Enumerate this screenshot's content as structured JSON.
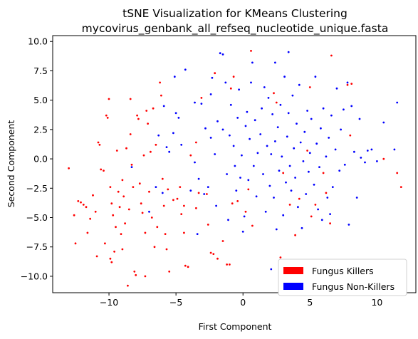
{
  "chart_data": {
    "type": "scatter",
    "title": "tSNE Visualization for KMeans Clustering",
    "subtitle": "mycovirus_genbank_all_refseq_nucleotide_unique.fasta",
    "xlabel": "First Component",
    "ylabel": "Second Component",
    "xlim": [
      -14.2,
      12.9
    ],
    "ylim": [
      -11.4,
      10.5
    ],
    "xticks": [
      -10,
      -5,
      0,
      5,
      10
    ],
    "yticks": [
      -10.0,
      -7.5,
      -5.0,
      -2.5,
      0.0,
      2.5,
      5.0,
      7.5,
      10.0
    ],
    "xtick_labels": [
      "−10",
      "−5",
      "0",
      "5",
      "10"
    ],
    "ytick_labels": [
      "−10.0",
      "−7.5",
      "−5.0",
      "−2.5",
      "0.0",
      "2.5",
      "5.0",
      "7.5",
      "10.0"
    ],
    "grid": false,
    "legend_position": "lower-right",
    "series": [
      {
        "name": "Fungus Killers",
        "color": "#ff0000",
        "points": [
          [
            -13.0,
            -0.8
          ],
          [
            -12.6,
            -4.8
          ],
          [
            -12.5,
            -7.2
          ],
          [
            -12.3,
            -3.6
          ],
          [
            -12.1,
            -3.7
          ],
          [
            -11.9,
            -3.9
          ],
          [
            -11.7,
            -4.1
          ],
          [
            -11.6,
            -6.3
          ],
          [
            -11.4,
            -5.1
          ],
          [
            -11.2,
            -3.1
          ],
          [
            -11.0,
            -4.5
          ],
          [
            -10.9,
            -8.3
          ],
          [
            -10.8,
            1.4
          ],
          [
            -10.7,
            1.2
          ],
          [
            -10.6,
            -0.9
          ],
          [
            -10.4,
            -1.0
          ],
          [
            -10.3,
            -7.2
          ],
          [
            -10.2,
            3.7
          ],
          [
            -10.1,
            3.5
          ],
          [
            -10.0,
            5.1
          ],
          [
            -9.9,
            -8.5
          ],
          [
            -9.8,
            -8.8
          ],
          [
            -9.9,
            -2.4
          ],
          [
            -9.8,
            -3.8
          ],
          [
            -9.7,
            -4.8
          ],
          [
            -9.6,
            -7.9
          ],
          [
            -9.5,
            -5.8
          ],
          [
            -9.4,
            0.7
          ],
          [
            -9.3,
            -2.8
          ],
          [
            -9.2,
            -4.1
          ],
          [
            -9.1,
            -6.4
          ],
          [
            -9.0,
            -7.7
          ],
          [
            -9.0,
            -1.8
          ],
          [
            -8.9,
            -3.2
          ],
          [
            -8.8,
            -5.5
          ],
          [
            -8.7,
            0.9
          ],
          [
            -8.6,
            -10.8
          ],
          [
            -8.5,
            -4.3
          ],
          [
            -8.4,
            5.1
          ],
          [
            -8.4,
            2.1
          ],
          [
            -8.3,
            -0.5
          ],
          [
            -8.2,
            -2.4
          ],
          [
            -8.1,
            -9.6
          ],
          [
            -8.0,
            -9.9
          ],
          [
            -7.9,
            3.7
          ],
          [
            -7.8,
            3.4
          ],
          [
            -7.7,
            -2.1
          ],
          [
            -7.6,
            -3.8
          ],
          [
            -7.5,
            -4.6
          ],
          [
            -7.4,
            0.3
          ],
          [
            -7.3,
            -6.3
          ],
          [
            -7.3,
            -10.0
          ],
          [
            -7.2,
            4.1
          ],
          [
            -7.1,
            3.0
          ],
          [
            -7.0,
            -2.8
          ],
          [
            -6.9,
            0.6
          ],
          [
            -6.8,
            -5.0
          ],
          [
            -6.7,
            4.3
          ],
          [
            -6.6,
            -7.5
          ],
          [
            -6.5,
            1.2
          ],
          [
            -6.4,
            -5.8
          ],
          [
            -6.2,
            6.5
          ],
          [
            -6.1,
            5.4
          ],
          [
            -6.0,
            -1.7
          ],
          [
            -5.9,
            -4.0
          ],
          [
            -5.8,
            -6.4
          ],
          [
            -5.7,
            -7.7
          ],
          [
            -5.6,
            -2.6
          ],
          [
            -5.5,
            -9.6
          ],
          [
            -5.2,
            -3.5
          ],
          [
            -4.9,
            -3.4
          ],
          [
            -4.7,
            -2.4
          ],
          [
            -4.6,
            -4.7
          ],
          [
            -4.4,
            -4.0
          ],
          [
            -4.4,
            -6.3
          ],
          [
            -4.3,
            -9.1
          ],
          [
            -4.1,
            -9.2
          ],
          [
            -3.9,
            0.3
          ],
          [
            -3.5,
            1.4
          ],
          [
            -3.5,
            -4.2
          ],
          [
            -3.3,
            -2.9
          ],
          [
            -3.1,
            5.2
          ],
          [
            -2.7,
            -3.0
          ],
          [
            -2.6,
            -5.6
          ],
          [
            -2.4,
            -8.0
          ],
          [
            -2.2,
            -8.1
          ],
          [
            -2.1,
            7.3
          ],
          [
            -1.9,
            -8.5
          ],
          [
            -1.5,
            -7.0
          ],
          [
            -1.2,
            -9.0
          ],
          [
            -1.0,
            -9.0
          ],
          [
            -0.9,
            6.0
          ],
          [
            -0.8,
            -3.8
          ],
          [
            -0.7,
            7.0
          ],
          [
            -0.4,
            -3.6
          ],
          [
            0.2,
            -4.5
          ],
          [
            0.4,
            -2.6
          ],
          [
            0.6,
            9.2
          ],
          [
            0.7,
            -5.7
          ],
          [
            2.3,
            5.6
          ],
          [
            2.5,
            4.8
          ],
          [
            2.8,
            -8.4
          ],
          [
            3.0,
            -1.2
          ],
          [
            3.5,
            -3.9
          ],
          [
            3.9,
            -6.5
          ],
          [
            4.2,
            -3.4
          ],
          [
            4.8,
            0.7
          ],
          [
            5.0,
            6.1
          ],
          [
            5.1,
            -4.9
          ],
          [
            5.4,
            -3.9
          ],
          [
            6.0,
            -1.2
          ],
          [
            6.2,
            -2.9
          ],
          [
            6.5,
            -5.5
          ],
          [
            6.6,
            8.8
          ],
          [
            7.8,
            6.3
          ],
          [
            8.0,
            2.0
          ],
          [
            8.1,
            6.4
          ],
          [
            10.5,
            0.0
          ],
          [
            11.5,
            -1.2
          ],
          [
            11.8,
            -2.4
          ]
        ]
      },
      {
        "name": "Fungus Non-Killers",
        "color": "#0000ff",
        "points": [
          [
            -8.3,
            -0.7
          ],
          [
            -7.0,
            -4.5
          ],
          [
            -6.5,
            -2.4
          ],
          [
            -6.3,
            2.0
          ],
          [
            -6.0,
            -2.9
          ],
          [
            -5.9,
            4.5
          ],
          [
            -5.7,
            1.0
          ],
          [
            -5.5,
            0.6
          ],
          [
            -5.2,
            2.2
          ],
          [
            -5.1,
            7.0
          ],
          [
            -5.0,
            3.9
          ],
          [
            -4.8,
            3.5
          ],
          [
            -4.6,
            1.2
          ],
          [
            -4.3,
            7.6
          ],
          [
            -3.9,
            -2.7
          ],
          [
            -3.6,
            -0.3
          ],
          [
            -3.6,
            4.8
          ],
          [
            -3.4,
            -6.4
          ],
          [
            -3.3,
            -1.7
          ],
          [
            -3.1,
            4.7
          ],
          [
            -2.9,
            -3.0
          ],
          [
            -2.8,
            2.6
          ],
          [
            -2.6,
            -2.4
          ],
          [
            -2.4,
            1.8
          ],
          [
            -2.4,
            5.5
          ],
          [
            -2.3,
            6.9
          ],
          [
            -2.1,
            0.4
          ],
          [
            -2.0,
            -4.0
          ],
          [
            -1.9,
            3.2
          ],
          [
            -1.7,
            9.0
          ],
          [
            -1.5,
            8.9
          ],
          [
            -1.5,
            2.5
          ],
          [
            -1.3,
            6.5
          ],
          [
            -1.2,
            -1.3
          ],
          [
            -1.1,
            -5.2
          ],
          [
            -1.0,
            2.0
          ],
          [
            -0.9,
            4.6
          ],
          [
            -0.7,
            1.1
          ],
          [
            -0.6,
            -0.6
          ],
          [
            -0.5,
            -2.7
          ],
          [
            -0.4,
            3.5
          ],
          [
            -0.3,
            5.9
          ],
          [
            -0.2,
            -1.6
          ],
          [
            -0.1,
            0.3
          ],
          [
            0.0,
            -6.2
          ],
          [
            0.1,
            -4.9
          ],
          [
            0.2,
            2.8
          ],
          [
            0.3,
            4.0
          ],
          [
            0.4,
            -1.8
          ],
          [
            0.5,
            1.7
          ],
          [
            0.6,
            6.5
          ],
          [
            0.7,
            8.2
          ],
          [
            0.8,
            -0.6
          ],
          [
            0.9,
            3.3
          ],
          [
            1.0,
            -3.2
          ],
          [
            1.1,
            0.5
          ],
          [
            1.3,
            2.1
          ],
          [
            1.4,
            4.3
          ],
          [
            1.5,
            -1.3
          ],
          [
            1.6,
            6.1
          ],
          [
            1.7,
            -4.5
          ],
          [
            1.8,
            1.1
          ],
          [
            1.9,
            5.2
          ],
          [
            2.0,
            -2.3
          ],
          [
            2.1,
            -9.4
          ],
          [
            2.1,
            0.4
          ],
          [
            2.2,
            3.8
          ],
          [
            2.3,
            -3.3
          ],
          [
            2.4,
            8.2
          ],
          [
            2.4,
            1.5
          ],
          [
            2.5,
            -6.0
          ],
          [
            2.6,
            2.7
          ],
          [
            2.7,
            -1.0
          ],
          [
            2.8,
            4.6
          ],
          [
            2.9,
            0.2
          ],
          [
            3.0,
            -4.8
          ],
          [
            3.1,
            7.0
          ],
          [
            3.2,
            -2.0
          ],
          [
            3.3,
            1.9
          ],
          [
            3.4,
            9.1
          ],
          [
            3.4,
            3.9
          ],
          [
            3.5,
            -0.6
          ],
          [
            3.6,
            -2.7
          ],
          [
            3.7,
            5.4
          ],
          [
            3.8,
            0.9
          ],
          [
            3.9,
            -1.6
          ],
          [
            4.0,
            3.0
          ],
          [
            4.1,
            -4.1
          ],
          [
            4.2,
            6.3
          ],
          [
            4.3,
            1.4
          ],
          [
            4.4,
            -5.9
          ],
          [
            4.5,
            -0.2
          ],
          [
            4.6,
            2.3
          ],
          [
            4.7,
            -3.0
          ],
          [
            4.8,
            4.1
          ],
          [
            4.9,
            -1.1
          ],
          [
            5.0,
            0.5
          ],
          [
            5.1,
            3.4
          ],
          [
            5.3,
            -2.2
          ],
          [
            5.4,
            7.0
          ],
          [
            5.5,
            1.3
          ],
          [
            5.6,
            -4.3
          ],
          [
            5.7,
            -0.7
          ],
          [
            5.8,
            2.6
          ],
          [
            5.9,
            -5.2
          ],
          [
            6.0,
            4.3
          ],
          [
            6.2,
            0.2
          ],
          [
            6.3,
            -3.3
          ],
          [
            6.4,
            1.8
          ],
          [
            6.5,
            -4.7
          ],
          [
            6.6,
            3.7
          ],
          [
            6.7,
            -2.4
          ],
          [
            6.9,
            0.8
          ],
          [
            7.0,
            6.0
          ],
          [
            7.2,
            -1.0
          ],
          [
            7.3,
            2.5
          ],
          [
            7.5,
            4.2
          ],
          [
            7.6,
            -0.5
          ],
          [
            7.8,
            6.5
          ],
          [
            7.9,
            -5.6
          ],
          [
            8.1,
            4.5
          ],
          [
            8.3,
            0.6
          ],
          [
            8.5,
            -3.3
          ],
          [
            8.7,
            3.4
          ],
          [
            8.8,
            0.1
          ],
          [
            9.1,
            -0.3
          ],
          [
            9.3,
            0.7
          ],
          [
            9.6,
            0.8
          ],
          [
            10.0,
            -0.2
          ],
          [
            10.5,
            3.1
          ],
          [
            11.3,
            0.8
          ],
          [
            11.5,
            4.8
          ]
        ]
      }
    ]
  }
}
